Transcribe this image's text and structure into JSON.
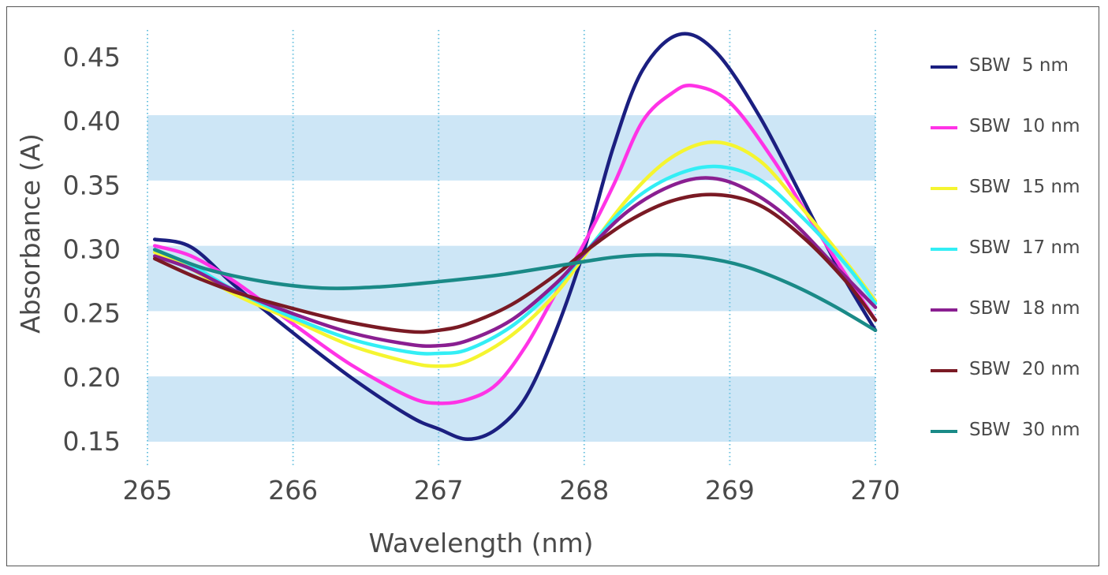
{
  "chart_data": {
    "type": "line",
    "title": "",
    "xlabel": "Wavelength (nm)",
    "ylabel": "Absorbance (A)",
    "xlim": [
      265,
      270
    ],
    "ylim": [
      0.15,
      0.45
    ],
    "xticks": [
      "265",
      "266",
      "267",
      "268",
      "269",
      "270"
    ],
    "yticks": [
      "0.45",
      "0.40",
      "0.35",
      "0.30",
      "0.25",
      "0.20",
      "0.15"
    ],
    "grid": "dotted vertical gridlines; alternating light-blue horizontal bands",
    "band_color": "#cde6f6",
    "legend_position": "right",
    "series": [
      {
        "name": "SBW  5 nm",
        "color": "#1b1f80",
        "x": [
          265.05,
          265.3,
          265.6,
          266.0,
          266.4,
          266.8,
          267.0,
          267.2,
          267.4,
          267.6,
          267.8,
          268.0,
          268.2,
          268.4,
          268.65,
          268.9,
          269.2,
          269.5,
          269.75,
          270.0
        ],
        "y": [
          0.308,
          0.302,
          0.272,
          0.235,
          0.2,
          0.17,
          0.16,
          0.152,
          0.16,
          0.185,
          0.235,
          0.3,
          0.38,
          0.44,
          0.468,
          0.455,
          0.405,
          0.34,
          0.285,
          0.237
        ]
      },
      {
        "name": "SBW  10 nm",
        "color": "#ff33e6",
        "x": [
          265.05,
          265.3,
          265.6,
          266.0,
          266.4,
          266.8,
          267.0,
          267.2,
          267.4,
          267.6,
          267.8,
          268.0,
          268.2,
          268.4,
          268.6,
          268.75,
          269.0,
          269.3,
          269.6,
          270.0
        ],
        "y": [
          0.303,
          0.295,
          0.275,
          0.242,
          0.21,
          0.185,
          0.18,
          0.183,
          0.195,
          0.225,
          0.265,
          0.305,
          0.35,
          0.4,
          0.422,
          0.428,
          0.415,
          0.37,
          0.315,
          0.245
        ]
      },
      {
        "name": "SBW  15 nm",
        "color": "#f5f530",
        "x": [
          265.05,
          265.3,
          265.6,
          266.0,
          266.4,
          266.8,
          267.0,
          267.2,
          267.5,
          267.8,
          268.0,
          268.3,
          268.6,
          268.9,
          269.2,
          269.5,
          269.8,
          270.0
        ],
        "y": [
          0.298,
          0.285,
          0.265,
          0.245,
          0.225,
          0.212,
          0.209,
          0.213,
          0.233,
          0.265,
          0.295,
          0.34,
          0.372,
          0.384,
          0.37,
          0.332,
          0.29,
          0.26
        ]
      },
      {
        "name": "SBW  17 nm",
        "color": "#33eef5",
        "x": [
          265.05,
          265.3,
          265.6,
          266.0,
          266.4,
          266.8,
          267.0,
          267.2,
          267.5,
          267.8,
          268.0,
          268.3,
          268.6,
          268.9,
          269.2,
          269.5,
          269.8,
          270.0
        ],
        "y": [
          0.3,
          0.288,
          0.268,
          0.247,
          0.23,
          0.22,
          0.219,
          0.222,
          0.24,
          0.27,
          0.297,
          0.335,
          0.357,
          0.365,
          0.355,
          0.325,
          0.288,
          0.258
        ]
      },
      {
        "name": "SBW  18 nm",
        "color": "#8a1f91",
        "x": [
          265.05,
          265.3,
          265.6,
          266.0,
          266.4,
          266.8,
          267.0,
          267.2,
          267.5,
          267.8,
          268.0,
          268.3,
          268.6,
          268.85,
          269.1,
          269.4,
          269.7,
          270.0
        ],
        "y": [
          0.295,
          0.285,
          0.268,
          0.25,
          0.235,
          0.226,
          0.225,
          0.229,
          0.245,
          0.273,
          0.297,
          0.33,
          0.35,
          0.356,
          0.348,
          0.325,
          0.29,
          0.255
        ]
      },
      {
        "name": "SBW  20 nm",
        "color": "#7a1a24",
        "x": [
          265.05,
          265.3,
          265.6,
          266.0,
          266.4,
          266.8,
          267.0,
          267.2,
          267.5,
          267.8,
          268.0,
          268.3,
          268.6,
          268.9,
          269.2,
          269.5,
          269.8,
          270.0
        ],
        "y": [
          0.293,
          0.28,
          0.267,
          0.254,
          0.243,
          0.236,
          0.237,
          0.242,
          0.257,
          0.28,
          0.298,
          0.322,
          0.338,
          0.343,
          0.335,
          0.31,
          0.275,
          0.245
        ]
      },
      {
        "name": "SBW  30 nm",
        "color": "#1a8a87",
        "x": [
          265.05,
          265.4,
          265.8,
          266.2,
          266.6,
          267.0,
          267.4,
          267.8,
          268.2,
          268.5,
          268.8,
          269.1,
          269.4,
          269.7,
          270.0
        ],
        "y": [
          0.3,
          0.285,
          0.275,
          0.27,
          0.271,
          0.275,
          0.28,
          0.287,
          0.294,
          0.296,
          0.294,
          0.287,
          0.274,
          0.257,
          0.237
        ]
      }
    ]
  }
}
